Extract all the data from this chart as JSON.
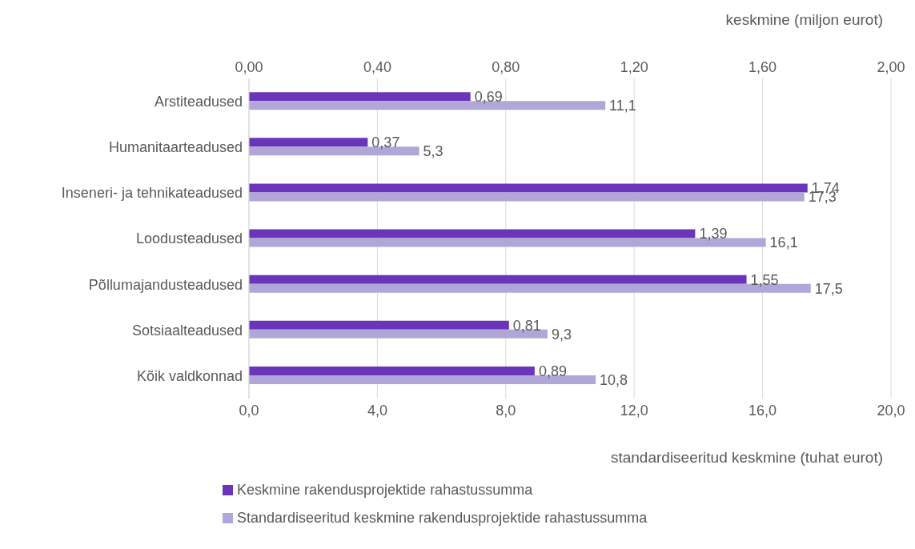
{
  "chart_data": {
    "type": "bar",
    "orientation": "horizontal",
    "categories": [
      "Arstiteadused",
      "Humanitaarteadused",
      "Inseneri- ja tehnikateadused",
      "Loodusteadused",
      "Põllumajandusteadused",
      "Sotsiaalteadused",
      "Kõik valdkonnad"
    ],
    "series": [
      {
        "name": "Keskmine rakendusprojektide rahastussumma",
        "color": "#6a35b8",
        "axis": "x2",
        "values": [
          0.69,
          0.37,
          1.74,
          1.39,
          1.55,
          0.81,
          0.89
        ],
        "value_labels": [
          "0,69",
          "0,37",
          "1,74",
          "1,39",
          "1,55",
          "0,81",
          "0,89"
        ]
      },
      {
        "name": "Standardiseeritud keskmine rakendusprojektide rahastussumma",
        "color": "#b0a6d8",
        "values": [
          11.1,
          5.3,
          17.3,
          16.1,
          17.5,
          9.3,
          10.8
        ],
        "value_labels": [
          "11,1",
          "5,3",
          "17,3",
          "16,1",
          "17,5",
          "9,3",
          "10,8"
        ]
      }
    ],
    "xlabel": "standardiseeritud keskmine (tuhat eurot)",
    "x2label": "keskmine (miljon eurot)",
    "xlim": [
      0,
      20
    ],
    "xticks": [
      {
        "value": 0,
        "label": "0,0"
      },
      {
        "value": 4,
        "label": "4,0"
      },
      {
        "value": 8,
        "label": "8,0"
      },
      {
        "value": 12,
        "label": "12,0"
      },
      {
        "value": 16,
        "label": "16,0"
      },
      {
        "value": 20,
        "label": "20,0"
      }
    ],
    "x2lim": [
      0,
      2
    ],
    "x2ticks": [
      {
        "value": 0,
        "label": "0,00"
      },
      {
        "value": 0.4,
        "label": "0,40"
      },
      {
        "value": 0.8,
        "label": "0,80"
      },
      {
        "value": 1.2,
        "label": "1,20"
      },
      {
        "value": 1.6,
        "label": "1,60"
      },
      {
        "value": 2,
        "label": "2,00"
      }
    ],
    "grid": "x",
    "legend": "bottom"
  }
}
